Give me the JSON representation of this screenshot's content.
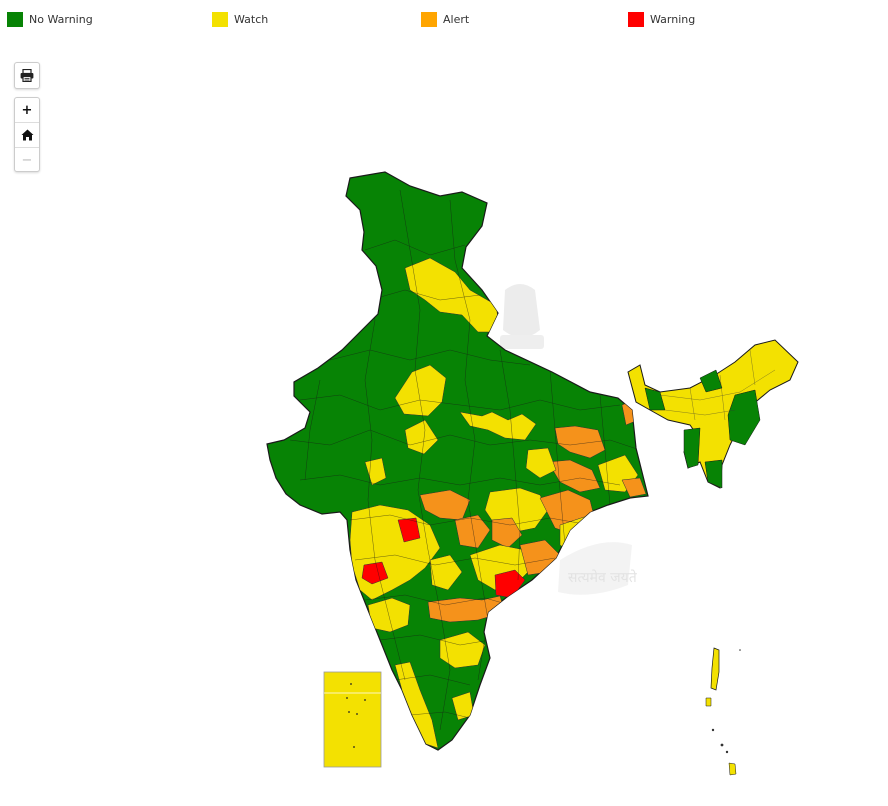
{
  "legend": {
    "items": [
      {
        "label": "No Warning",
        "color": "#078305"
      },
      {
        "label": "Watch",
        "color": "#f3e101"
      },
      {
        "label": "Alert",
        "color": "#ffa500"
      },
      {
        "label": "Warning",
        "color": "#ff0000"
      }
    ]
  },
  "controls": {
    "print_icon": "printer-icon",
    "zoom_in_label": "+",
    "home_icon": "home-icon",
    "zoom_out_label": "−"
  },
  "map": {
    "colors": {
      "no_warning": "#078305",
      "watch": "#f3e101",
      "alert": "#f5921b",
      "warning": "#ff0000",
      "border": "#1a1a1a",
      "emblem": "#d9d9d9"
    },
    "watermark_text": "सत्यमेव जयते"
  }
}
